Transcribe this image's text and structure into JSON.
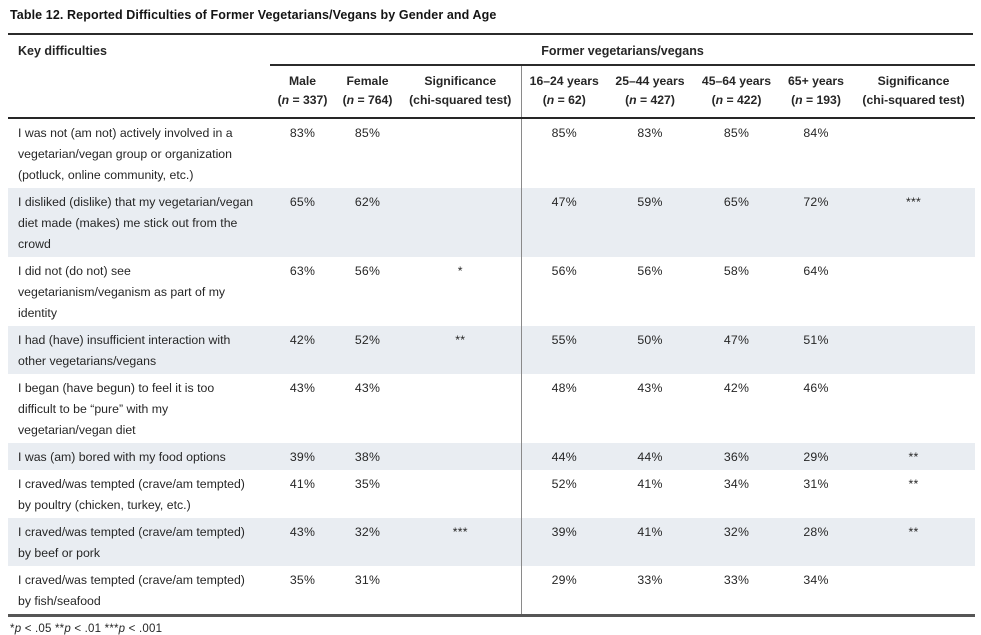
{
  "title": "Table 12. Reported Difficulties of Former Vegetarians/Vegans by Gender and Age",
  "table": {
    "key_column_header": "Key difficulties",
    "group_header": "Former vegetarians/vegans",
    "columns": [
      {
        "label": "Male",
        "sub": "(n = 337)"
      },
      {
        "label": "Female",
        "sub": "(n = 764)"
      },
      {
        "label": "Significance",
        "sub": "(chi-squared test)"
      },
      {
        "label": "16–24 years",
        "sub": "(n = 62)"
      },
      {
        "label": "25–44 years",
        "sub": "(n = 427)"
      },
      {
        "label": "45–64 years",
        "sub": "(n = 422)"
      },
      {
        "label": "65+ years",
        "sub": "(n = 193)"
      },
      {
        "label": "Significance",
        "sub": "(chi-squared test)"
      }
    ],
    "rows": [
      {
        "difficulty": "I was not (am not) actively involved in a vegetarian/vegan group or organization (potluck, online community, etc.)",
        "values": [
          "83%",
          "85%",
          "",
          "85%",
          "83%",
          "85%",
          "84%",
          ""
        ],
        "shaded": false
      },
      {
        "difficulty": "I disliked (dislike) that my vegetarian/vegan diet made (makes) me stick out from the crowd",
        "values": [
          "65%",
          "62%",
          "",
          "47%",
          "59%",
          "65%",
          "72%",
          "***"
        ],
        "shaded": true
      },
      {
        "difficulty": "I did not (do not) see vegetarianism/veganism as part of my identity",
        "values": [
          "63%",
          "56%",
          "*",
          "56%",
          "56%",
          "58%",
          "64%",
          ""
        ],
        "shaded": false
      },
      {
        "difficulty": "I had (have) insufficient interaction with other vegetarians/vegans",
        "values": [
          "42%",
          "52%",
          "**",
          "55%",
          "50%",
          "47%",
          "51%",
          ""
        ],
        "shaded": true
      },
      {
        "difficulty": "I began (have begun) to feel it is too difficult to be “pure” with my vegetarian/vegan diet",
        "values": [
          "43%",
          "43%",
          "",
          "48%",
          "43%",
          "42%",
          "46%",
          ""
        ],
        "shaded": false
      },
      {
        "difficulty": "I was (am) bored with my food options",
        "values": [
          "39%",
          "38%",
          "",
          "44%",
          "44%",
          "36%",
          "29%",
          "**"
        ],
        "shaded": true
      },
      {
        "difficulty": "I craved/was tempted (crave/am tempted) by poultry (chicken, turkey, etc.)",
        "values": [
          "41%",
          "35%",
          "",
          "52%",
          "41%",
          "34%",
          "31%",
          "**"
        ],
        "shaded": false
      },
      {
        "difficulty": "I craved/was tempted (crave/am tempted) by beef or pork",
        "values": [
          "43%",
          "32%",
          "***",
          "39%",
          "41%",
          "32%",
          "28%",
          "**"
        ],
        "shaded": true
      },
      {
        "difficulty": "I craved/was tempted (crave/am tempted) by fish/seafood",
        "values": [
          "35%",
          "31%",
          "",
          "29%",
          "33%",
          "33%",
          "34%",
          ""
        ],
        "shaded": false
      }
    ],
    "footnote": "*p < .05 **p < .01 ***p < .001"
  },
  "colors": {
    "row_shading": "#e9edf2",
    "rule_dark": "#2b2b2b",
    "bottom_rule": "#565656",
    "divider": "#8a8a8a",
    "text": "#262626"
  }
}
